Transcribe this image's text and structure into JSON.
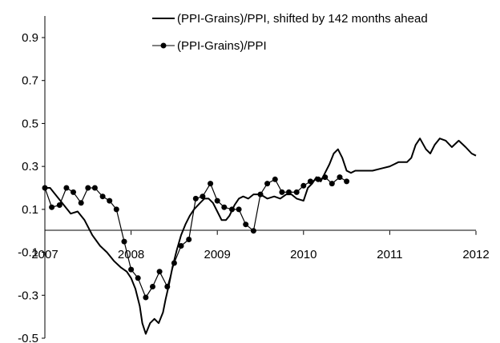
{
  "chart_data": {
    "type": "line",
    "title": "",
    "xlabel": "",
    "ylabel": "",
    "xlim": [
      2007.0,
      2012.0
    ],
    "ylim": [
      -0.5,
      1.0
    ],
    "x_ticks": [
      2007,
      2008,
      2009,
      2010,
      2011,
      2012
    ],
    "x_tick_labels": [
      "2007",
      "2008",
      "2009",
      "2010",
      "2011",
      "2012"
    ],
    "y_ticks": [
      0.9,
      0.7,
      0.5,
      0.3,
      0.1,
      -0.1,
      -0.3,
      -0.5
    ],
    "y_tick_labels": [
      "0.9",
      "0.7",
      "0.5",
      "0.3",
      "0.1",
      "-0.1",
      "-0.3",
      "-0.5"
    ],
    "grid": false,
    "legend_position": "top-right",
    "series": [
      {
        "name": "(PPI-Grains)/PPI, shifted by 142 months ahead",
        "color": "#000000",
        "marker": "none",
        "x": [
          2007.0,
          2007.06,
          2007.14,
          2007.22,
          2007.3,
          2007.38,
          2007.46,
          2007.55,
          2007.64,
          2007.72,
          2007.8,
          2007.88,
          2007.95,
          2008.0,
          2008.05,
          2008.1,
          2008.13,
          2008.17,
          2008.22,
          2008.27,
          2008.32,
          2008.37,
          2008.4,
          2008.44,
          2008.48,
          2008.53,
          2008.58,
          2008.63,
          2008.68,
          2008.73,
          2008.8,
          2008.85,
          2008.9,
          2008.95,
          2009.0,
          2009.05,
          2009.1,
          2009.14,
          2009.2,
          2009.25,
          2009.3,
          2009.36,
          2009.42,
          2009.5,
          2009.58,
          2009.66,
          2009.73,
          2009.8,
          2009.86,
          2009.92,
          2010.0,
          2010.05,
          2010.1,
          2010.15,
          2010.2,
          2010.25,
          2010.3,
          2010.35,
          2010.4,
          2010.45,
          2010.5,
          2010.55,
          2010.6,
          2010.66,
          2010.72,
          2010.8,
          2010.9,
          2011.0,
          2011.05,
          2011.1,
          2011.2,
          2011.25,
          2011.3,
          2011.35,
          2011.42,
          2011.47,
          2011.52,
          2011.58,
          2011.65,
          2011.72,
          2011.8,
          2011.88,
          2011.95,
          2012.0
        ],
        "y": [
          0.2,
          0.2,
          0.16,
          0.12,
          0.08,
          0.09,
          0.05,
          -0.02,
          -0.07,
          -0.1,
          -0.14,
          -0.17,
          -0.19,
          -0.22,
          -0.27,
          -0.35,
          -0.43,
          -0.48,
          -0.43,
          -0.41,
          -0.43,
          -0.38,
          -0.32,
          -0.25,
          -0.17,
          -0.09,
          -0.02,
          0.03,
          0.07,
          0.1,
          0.13,
          0.15,
          0.15,
          0.13,
          0.09,
          0.05,
          0.05,
          0.07,
          0.12,
          0.15,
          0.16,
          0.15,
          0.17,
          0.17,
          0.15,
          0.16,
          0.15,
          0.17,
          0.17,
          0.15,
          0.14,
          0.2,
          0.22,
          0.25,
          0.23,
          0.27,
          0.31,
          0.36,
          0.38,
          0.34,
          0.28,
          0.27,
          0.28,
          0.28,
          0.28,
          0.28,
          0.29,
          0.3,
          0.31,
          0.32,
          0.32,
          0.34,
          0.4,
          0.43,
          0.38,
          0.36,
          0.4,
          0.43,
          0.42,
          0.39,
          0.42,
          0.39,
          0.36,
          0.35
        ]
      },
      {
        "name": "(PPI-Grains)/PPI",
        "color": "#000000",
        "marker": "circle",
        "x": [
          2007.0,
          2007.08,
          2007.17,
          2007.25,
          2007.33,
          2007.42,
          2007.5,
          2007.58,
          2007.67,
          2007.75,
          2007.83,
          2007.92,
          2008.0,
          2008.08,
          2008.17,
          2008.25,
          2008.33,
          2008.42,
          2008.5,
          2008.58,
          2008.67,
          2008.75,
          2008.83,
          2008.92,
          2009.0,
          2009.08,
          2009.17,
          2009.25,
          2009.33,
          2009.42,
          2009.5,
          2009.58,
          2009.67,
          2009.75,
          2009.83,
          2009.92,
          2010.0,
          2010.08,
          2010.17,
          2010.25,
          2010.33,
          2010.42,
          2010.5
        ],
        "y": [
          0.2,
          0.11,
          0.12,
          0.2,
          0.18,
          0.13,
          0.2,
          0.2,
          0.16,
          0.14,
          0.1,
          -0.05,
          -0.18,
          -0.22,
          -0.31,
          -0.26,
          -0.19,
          -0.26,
          -0.15,
          -0.07,
          -0.04,
          0.15,
          0.16,
          0.22,
          0.14,
          0.11,
          0.1,
          0.1,
          0.03,
          0.0,
          0.17,
          0.22,
          0.24,
          0.18,
          0.18,
          0.18,
          0.21,
          0.23,
          0.24,
          0.25,
          0.22,
          0.25,
          0.23
        ]
      }
    ]
  }
}
